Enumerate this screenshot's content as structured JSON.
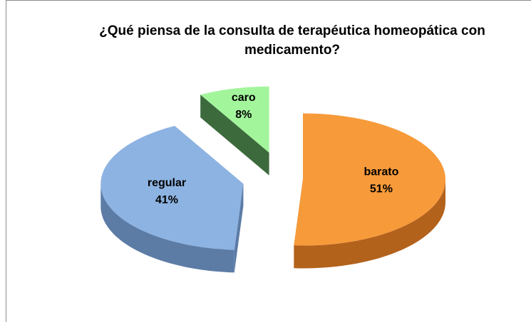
{
  "chart_data": {
    "type": "pie3d",
    "title": "¿Qué piensa de la consulta de terapéutica homeopática con medicamento?",
    "categories": [
      "barato",
      "regular",
      "caro"
    ],
    "values": [
      51,
      41,
      8
    ],
    "value_labels": [
      "51%",
      "41%",
      "8%"
    ],
    "colors": [
      "#f79a3a",
      "#8db3e2",
      "#a3f59c"
    ],
    "side_colors": [
      "#b3621c",
      "#5c7ca6",
      "#3c6a3c"
    ]
  }
}
